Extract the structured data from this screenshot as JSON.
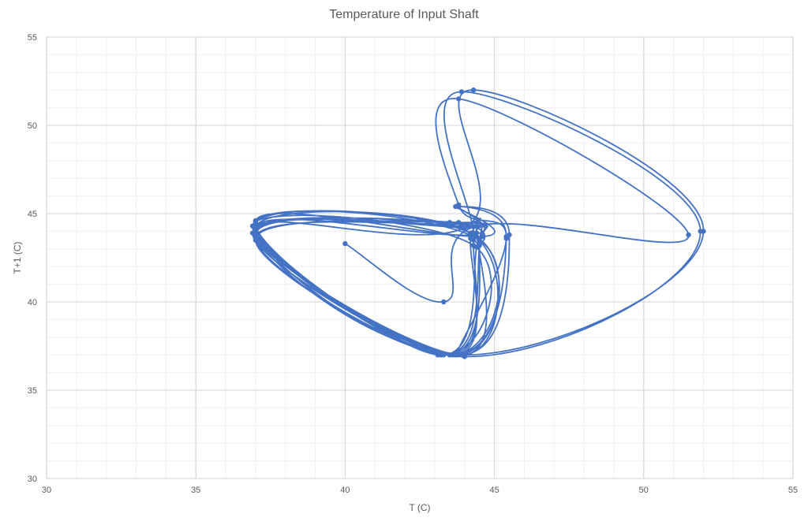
{
  "chart_data": {
    "type": "scatter",
    "title": "Temperature of Input Shaft",
    "xlabel": "T (C)",
    "ylabel": "T+1 (C)",
    "xlim": [
      30,
      55
    ],
    "ylim": [
      30,
      55
    ],
    "x_ticks": [
      "30",
      "35",
      "40",
      "45",
      "50",
      "55"
    ],
    "y_ticks": [
      "30",
      "35",
      "40",
      "45",
      "50",
      "55"
    ],
    "grid": true,
    "minor_grid": true,
    "legend": "none",
    "series_color": "#4472C4",
    "gridline_color": "#d9d9d9",
    "minor_gridline_color": "#f0f0f0",
    "series": [
      {
        "points": [
          [
            40.0,
            43.3
          ],
          [
            43.3,
            40.0
          ],
          [
            44.4,
            44.3
          ],
          [
            51.5,
            43.8
          ],
          [
            43.8,
            51.5
          ],
          [
            43.8,
            45.5
          ],
          [
            45.4,
            43.6
          ],
          [
            43.6,
            37.0
          ],
          [
            37.0,
            43.6
          ],
          [
            43.6,
            44.4
          ],
          [
            44.4,
            43.9
          ],
          [
            43.9,
            37.0
          ],
          [
            37.0,
            43.9
          ],
          [
            43.9,
            44.3
          ],
          [
            44.3,
            43.5
          ],
          [
            43.5,
            37.0
          ],
          [
            37.0,
            43.5
          ],
          [
            43.5,
            44.5
          ],
          [
            44.5,
            43.3
          ],
          [
            43.3,
            37.0
          ],
          [
            37.0,
            44.2
          ],
          [
            44.2,
            43.8
          ],
          [
            43.8,
            45.4
          ],
          [
            45.5,
            43.8
          ],
          [
            43.8,
            37.0
          ],
          [
            37.0,
            44.1
          ],
          [
            44.1,
            44.3
          ],
          [
            44.3,
            52.0
          ],
          [
            52.0,
            44.0
          ],
          [
            44.0,
            37.0
          ],
          [
            37.0,
            44.0
          ],
          [
            44.0,
            44.2
          ],
          [
            44.2,
            43.6
          ],
          [
            43.6,
            37.0
          ],
          [
            37.0,
            43.8
          ],
          [
            43.8,
            44.5
          ],
          [
            44.5,
            43.2
          ],
          [
            43.2,
            37.0
          ],
          [
            37.0,
            44.4
          ],
          [
            44.4,
            43.7
          ],
          [
            43.7,
            37.0
          ],
          [
            36.9,
            43.9
          ],
          [
            43.9,
            44.3
          ],
          [
            44.3,
            43.9
          ],
          [
            43.9,
            51.9
          ],
          [
            51.9,
            44.0
          ],
          [
            44.0,
            36.9
          ],
          [
            36.9,
            44.3
          ],
          [
            44.3,
            43.2
          ],
          [
            43.2,
            37.0
          ],
          [
            37.0,
            44.5
          ],
          [
            44.5,
            43.5
          ],
          [
            43.5,
            37.0
          ],
          [
            37.0,
            44.2
          ],
          [
            44.2,
            43.9
          ],
          [
            43.9,
            37.0
          ],
          [
            37.0,
            43.9
          ],
          [
            43.9,
            44.4
          ],
          [
            44.4,
            43.1
          ],
          [
            43.1,
            37.0
          ],
          [
            37.0,
            44.6
          ],
          [
            44.6,
            43.7
          ],
          [
            43.7,
            45.4
          ],
          [
            45.4,
            43.7
          ],
          [
            43.7,
            37.0
          ]
        ]
      }
    ]
  }
}
